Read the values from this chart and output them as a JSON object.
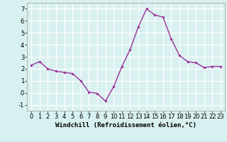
{
  "x": [
    0,
    1,
    2,
    3,
    4,
    5,
    6,
    7,
    8,
    9,
    10,
    11,
    12,
    13,
    14,
    15,
    16,
    17,
    18,
    19,
    20,
    21,
    22,
    23
  ],
  "y": [
    2.3,
    2.6,
    2.0,
    1.8,
    1.7,
    1.6,
    1.0,
    0.05,
    -0.05,
    -0.7,
    0.5,
    2.2,
    3.6,
    5.5,
    7.0,
    6.5,
    6.3,
    4.5,
    3.1,
    2.6,
    2.5,
    2.1,
    2.2,
    2.2
  ],
  "line_color": "#993399",
  "marker": "D",
  "marker_size": 1.8,
  "linewidth": 1.0,
  "xlabel": "Windchill (Refroidissement éolien,°C)",
  "xlabel_fontsize": 6.5,
  "xlim": [
    -0.5,
    23.5
  ],
  "ylim": [
    -1.5,
    7.5
  ],
  "yticks": [
    -1,
    0,
    1,
    2,
    3,
    4,
    5,
    6,
    7
  ],
  "xticks": [
    0,
    1,
    2,
    3,
    4,
    5,
    6,
    7,
    8,
    9,
    10,
    11,
    12,
    13,
    14,
    15,
    16,
    17,
    18,
    19,
    20,
    21,
    22,
    23
  ],
  "background_color": "#d9f0f0",
  "grid_color": "#ffffff",
  "tick_fontsize": 6.0,
  "spine_color": "#aaaaaa"
}
